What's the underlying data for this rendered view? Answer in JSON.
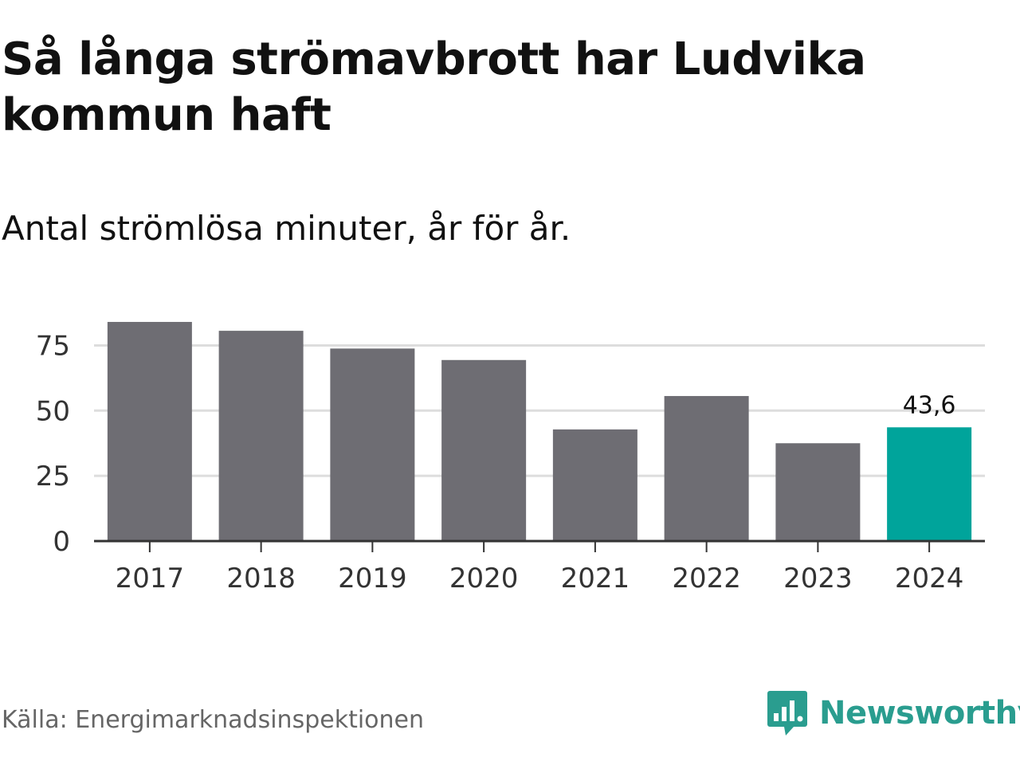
{
  "title": "Så långa strömavbrott har Ludvika kommun haft",
  "subtitle": "Antal strömlösa minuter, år för år.",
  "source": "Källa: Energimarknadsinspektionen",
  "brand": {
    "name": "Newsworthy",
    "color": "#2a9d8f",
    "logo_icon": "chart-bubble-icon"
  },
  "colors": {
    "bar": "#6e6d73",
    "highlight": "#00a49b",
    "grid": "#dddddd",
    "axis": "#333333",
    "text": "#333333"
  },
  "chart_data": {
    "type": "bar",
    "title": "Så långa strömavbrott har Ludvika kommun haft",
    "subtitle": "Antal strömlösa minuter, år för år.",
    "categories": [
      "2017",
      "2018",
      "2019",
      "2020",
      "2021",
      "2022",
      "2023",
      "2024"
    ],
    "values": [
      84,
      80.6,
      73.8,
      69.4,
      42.8,
      55.6,
      37.5,
      43.6
    ],
    "highlight_index": 7,
    "data_labels": [
      {
        "index": 7,
        "text": "43,6"
      }
    ],
    "yticks": [
      "0",
      "25",
      "50",
      "75"
    ],
    "ytick_values": [
      0,
      25,
      50,
      75
    ],
    "ylim": [
      0,
      85
    ],
    "xlabel": "",
    "ylabel": "",
    "grid": true
  }
}
